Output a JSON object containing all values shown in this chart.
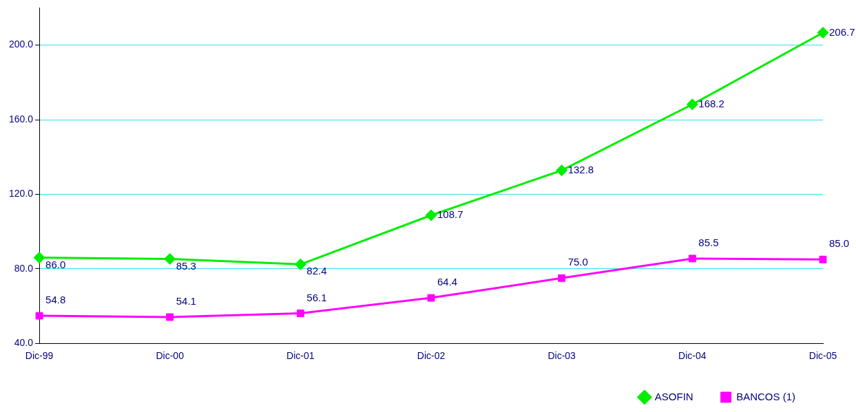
{
  "chart_data": {
    "type": "line",
    "categories": [
      "Dic-99",
      "Dic-00",
      "Dic-01",
      "Dic-02",
      "Dic-03",
      "Dic-04",
      "Dic-05"
    ],
    "series": [
      {
        "name": "ASOFIN",
        "color": "#00ee00",
        "marker": "diamond",
        "values": [
          86.0,
          85.3,
          82.4,
          108.7,
          132.8,
          168.2,
          206.7
        ],
        "value_labels": [
          "86.0",
          "85.3",
          "82.4",
          "108.7",
          "132.8",
          "168.2",
          "206.7"
        ]
      },
      {
        "name": "BANCOS (1)",
        "color": "#ff00ff",
        "marker": "square",
        "values": [
          54.8,
          54.1,
          56.1,
          64.4,
          75.0,
          85.5,
          85.0
        ],
        "value_labels": [
          "54.8",
          "54.1",
          "56.1",
          "64.4",
          "75.0",
          "85.5",
          "85.0"
        ]
      }
    ],
    "ylim": [
      40,
      220
    ],
    "yticks": [
      {
        "value": 40,
        "label": "40.0"
      },
      {
        "value": 80,
        "label": "80.0"
      },
      {
        "value": 120,
        "label": "120.0"
      },
      {
        "value": 160,
        "label": "160.0"
      },
      {
        "value": 200,
        "label": "200.0"
      }
    ],
    "grid": "y",
    "legend": "bottom right",
    "line_style": "solid"
  }
}
